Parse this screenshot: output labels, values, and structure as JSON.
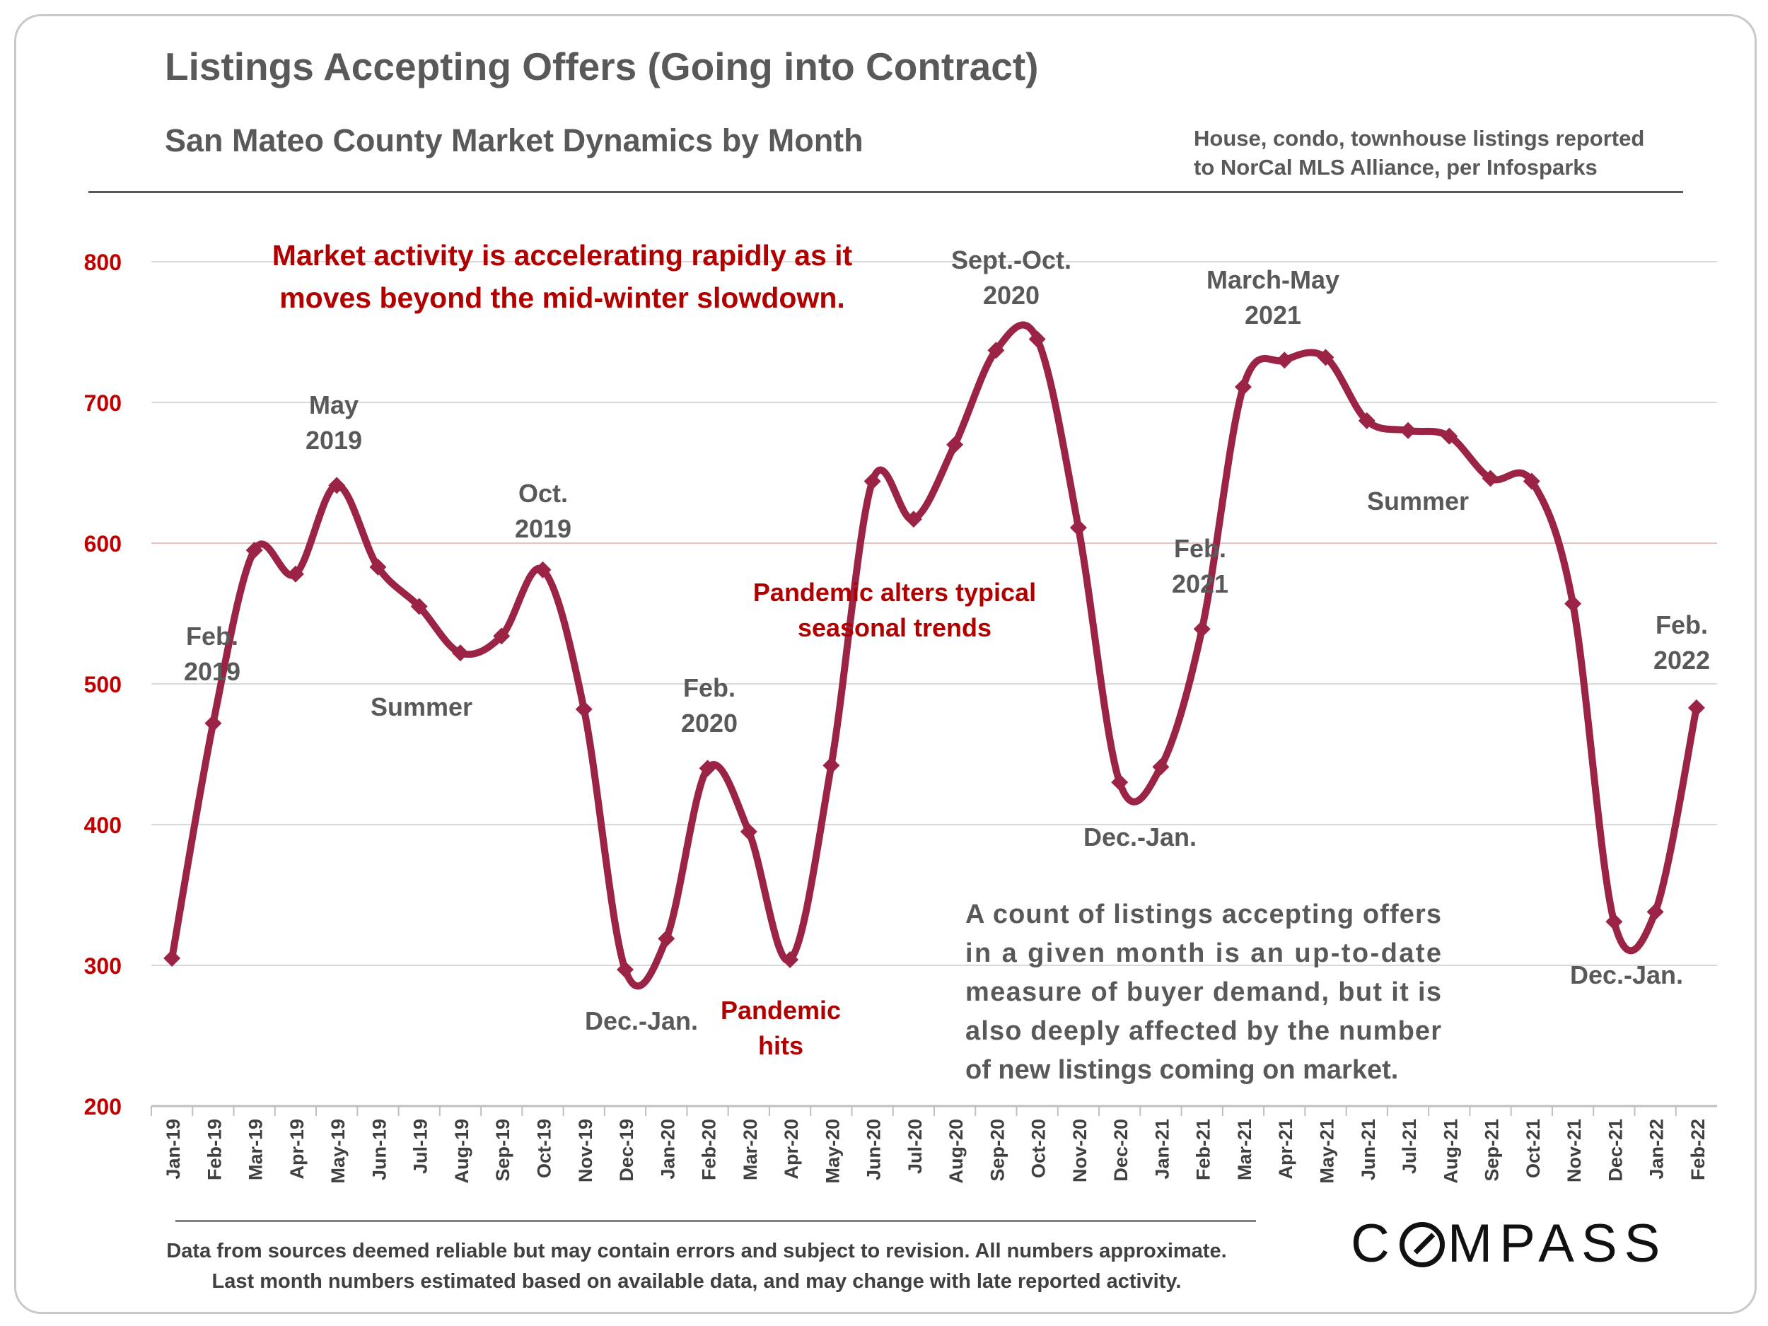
{
  "header": {
    "title": "Listings Accepting Offers (Going into Contract)",
    "subtitle": "San Mateo County Market Dynamics by Month",
    "source_line1": "House, condo, townhouse listings reported",
    "source_line2": "to NorCal MLS Alliance, per Infosparks"
  },
  "footer": {
    "line1": "Data from sources deemed reliable but may contain errors and subject to revision. All numbers approximate.",
    "line2": "Last month numbers estimated based on available data, and may change with late reported activity.",
    "logo_left": "C",
    "logo_right": "MPASS"
  },
  "colors": {
    "line": "#9b2446",
    "axis_label": "#c00000",
    "annotation_dark": "#595959",
    "annotation_red": "#b00000"
  },
  "chart_data": {
    "type": "line",
    "title": "Listings Accepting Offers (Going into Contract)",
    "subtitle": "San Mateo County Market Dynamics by Month",
    "xlabel": "",
    "ylabel": "",
    "ylim": [
      200,
      800
    ],
    "yticks": [
      200,
      300,
      400,
      500,
      600,
      700,
      800
    ],
    "grid": true,
    "categories": [
      "Jan-19",
      "Feb-19",
      "Mar-19",
      "Apr-19",
      "May-19",
      "Jun-19",
      "Jul-19",
      "Aug-19",
      "Sep-19",
      "Oct-19",
      "Nov-19",
      "Dec-19",
      "Jan-20",
      "Feb-20",
      "Mar-20",
      "Apr-20",
      "May-20",
      "Jun-20",
      "Jul-20",
      "Aug-20",
      "Sep-20",
      "Oct-20",
      "Nov-20",
      "Dec-20",
      "Jan-21",
      "Feb-21",
      "Mar-21",
      "Apr-21",
      "May-21",
      "Jun-21",
      "Jul-21",
      "Aug-21",
      "Sep-21",
      "Oct-21",
      "Nov-21",
      "Dec-21",
      "Jan-22",
      "Feb-22"
    ],
    "series": [
      {
        "values": [
          305,
          472,
          595,
          578,
          641,
          583,
          555,
          522,
          534,
          581,
          482,
          297,
          319,
          440,
          395,
          304,
          442,
          644,
          617,
          670,
          737,
          745,
          611,
          430,
          441,
          539,
          711,
          730,
          732,
          687,
          680,
          676,
          646,
          644,
          557,
          331,
          338,
          483
        ]
      }
    ],
    "annotations": [
      {
        "text": "Market activity is accelerating rapidly as it",
        "style": "red-large"
      },
      {
        "text": "moves beyond the mid-winter slowdown.",
        "style": "red-large"
      },
      {
        "text": "May",
        "style": "dark"
      },
      {
        "text": "2019",
        "style": "dark"
      },
      {
        "text": "Feb.",
        "style": "dark"
      },
      {
        "text": "2019",
        "style": "dark"
      },
      {
        "text": "Oct.",
        "style": "dark"
      },
      {
        "text": "2019",
        "style": "dark"
      },
      {
        "text": "Summer",
        "style": "dark"
      },
      {
        "text": "Feb.",
        "style": "dark"
      },
      {
        "text": "2020",
        "style": "dark"
      },
      {
        "text": "Dec.-Jan.",
        "style": "dark"
      },
      {
        "text": "Pandemic",
        "style": "red"
      },
      {
        "text": "hits",
        "style": "red"
      },
      {
        "text": "Pandemic alters typical",
        "style": "red"
      },
      {
        "text": "seasonal trends",
        "style": "red"
      },
      {
        "text": "Sept.-Oct.",
        "style": "dark"
      },
      {
        "text": "2020",
        "style": "dark"
      },
      {
        "text": "Dec.-Jan.",
        "style": "dark"
      },
      {
        "text": "Feb.",
        "style": "dark"
      },
      {
        "text": "2021",
        "style": "dark"
      },
      {
        "text": "March-May",
        "style": "dark"
      },
      {
        "text": "2021",
        "style": "dark"
      },
      {
        "text": "Summer",
        "style": "dark"
      },
      {
        "text": "Dec.-Jan.",
        "style": "dark"
      },
      {
        "text": "Feb.",
        "style": "dark"
      },
      {
        "text": "2022",
        "style": "dark"
      },
      {
        "text": "A count of listings accepting offers",
        "style": "note"
      },
      {
        "text": "in a given month is an up-to-date",
        "style": "note"
      },
      {
        "text": "measure of buyer demand, but it is",
        "style": "note"
      },
      {
        "text": "also deeply affected by the number",
        "style": "note"
      },
      {
        "text": "of new listings coming on market.",
        "style": "note"
      }
    ]
  }
}
